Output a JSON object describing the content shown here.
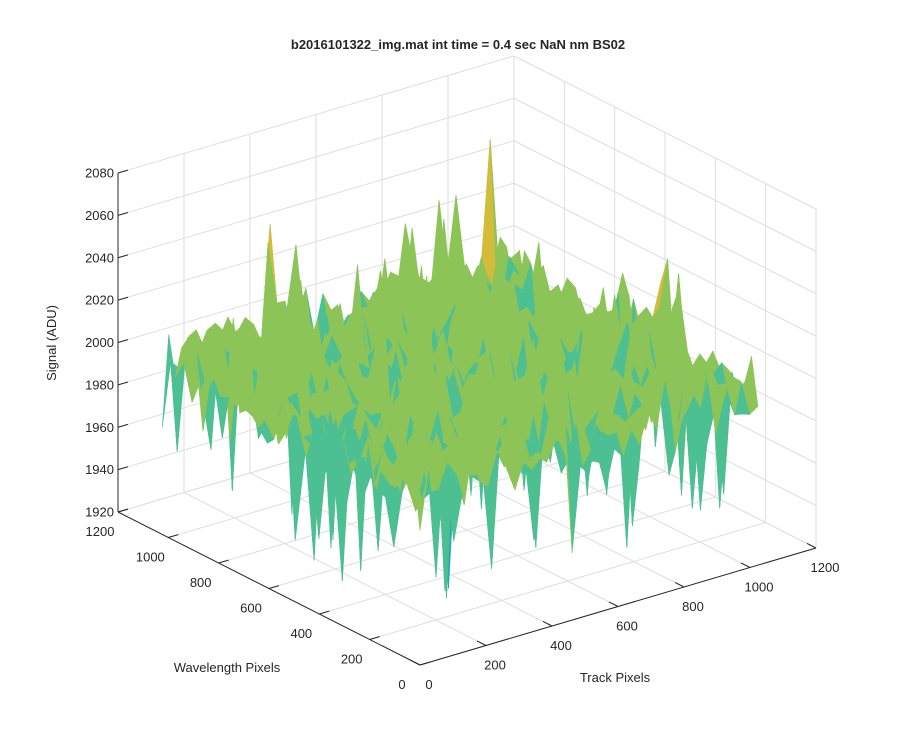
{
  "chart_data": {
    "type": "surface",
    "title": "b2016101322_img.mat int time = 0.4 sec  NaN nm BS02",
    "xlabel": "Track Pixels",
    "ylabel": "Wavelength Pixels",
    "zlabel": "Signal (ADU)",
    "xlim": [
      0,
      1200
    ],
    "ylim": [
      0,
      1200
    ],
    "zlim": [
      1920,
      2080
    ],
    "x_ticks": [
      "0",
      "200",
      "400",
      "600",
      "800",
      "1000",
      "1200"
    ],
    "y_ticks": [
      "0",
      "200",
      "400",
      "600",
      "800",
      "1000",
      "1200"
    ],
    "z_ticks": [
      "1920",
      "1940",
      "1960",
      "1980",
      "2000",
      "2020",
      "2040",
      "2060",
      "2080"
    ],
    "data_extent": {
      "x": [
        0,
        1024
      ],
      "y": [
        0,
        1024
      ]
    },
    "mean_signal": 2002,
    "signal_range": [
      1916,
      2078
    ],
    "grid": true,
    "colormap": [
      "#2a7fd4",
      "#20a4c6",
      "#4cbf93",
      "#8dc458",
      "#d4bc3a",
      "#f2c83a"
    ]
  }
}
